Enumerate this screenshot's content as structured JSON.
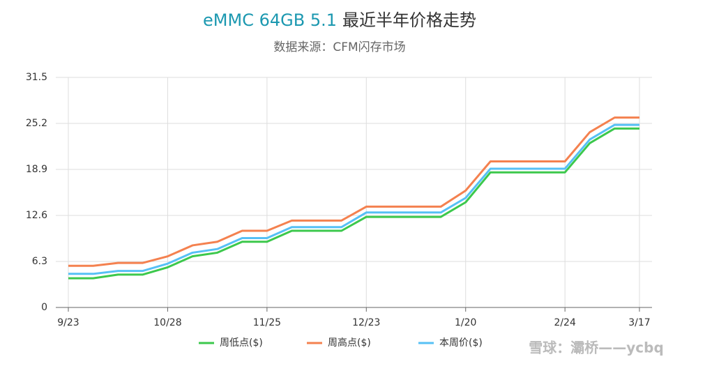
{
  "chart_data": {
    "type": "line",
    "title": {
      "model": "eMMC 64GB 5.1",
      "text": "最近半年价格走势"
    },
    "subtitle": "数据来源：CFM闪存市场",
    "watermark": "雪球：灞桥——ycbq",
    "categories": [
      "9/23",
      null,
      null,
      null,
      "10/28",
      null,
      null,
      null,
      "11/25",
      null,
      null,
      null,
      "12/23",
      null,
      null,
      null,
      "1/20",
      null,
      null,
      null,
      "2/24",
      null,
      null,
      "3/17"
    ],
    "series": [
      {
        "name": "周低点($)",
        "color": "#3cc84c",
        "values": [
          4.0,
          4.0,
          4.5,
          4.5,
          5.5,
          7.0,
          7.5,
          9.0,
          9.0,
          10.5,
          10.5,
          10.5,
          12.4,
          12.4,
          12.4,
          12.4,
          14.4,
          18.5,
          18.5,
          18.5,
          18.5,
          22.5,
          24.5,
          24.5
        ]
      },
      {
        "name": "周高点($)",
        "color": "#f4814f",
        "values": [
          5.7,
          5.7,
          6.1,
          6.1,
          7.0,
          8.5,
          9.0,
          10.5,
          10.5,
          11.9,
          11.9,
          11.9,
          13.8,
          13.8,
          13.8,
          13.8,
          16.0,
          20.0,
          20.0,
          20.0,
          20.0,
          24.0,
          26.0,
          26.0
        ]
      },
      {
        "name": "本周价($)",
        "color": "#56c0f5",
        "values": [
          4.6,
          4.6,
          5.0,
          5.0,
          6.0,
          7.5,
          8.0,
          9.5,
          9.5,
          11.0,
          11.0,
          11.0,
          13.0,
          13.0,
          13.0,
          13.0,
          15.0,
          19.0,
          19.0,
          19.0,
          19.0,
          23.0,
          25.0,
          25.0
        ]
      }
    ],
    "ylim": [
      0,
      31.5
    ],
    "yticks": [
      0,
      6.3,
      12.6,
      18.9,
      25.2,
      31.5
    ],
    "grid": true
  }
}
